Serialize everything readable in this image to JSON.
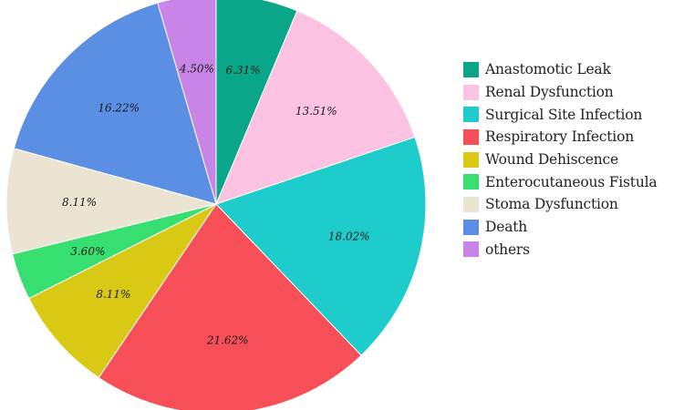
{
  "chart_data": {
    "type": "pie",
    "title": "",
    "start_angle_deg": 0,
    "direction": "clockwise",
    "legend_position": "right",
    "slices": [
      {
        "name": "Anastomotic Leak",
        "value": 6.31,
        "label": "6.31%",
        "color": "#0aa68a"
      },
      {
        "name": "Renal Dysfunction",
        "value": 13.51,
        "label": "13.51%",
        "color": "#fbc2e2"
      },
      {
        "name": "Surgical Site Infection",
        "value": 18.02,
        "label": "18.02%",
        "color": "#1fcccc"
      },
      {
        "name": "Respiratory Infection",
        "value": 21.62,
        "label": "21.62%",
        "color": "#f64f57"
      },
      {
        "name": "Wound Dehiscence",
        "value": 8.11,
        "label": "8.11%",
        "color": "#d9c814"
      },
      {
        "name": "Enterocutaneous Fistula",
        "value": 3.6,
        "label": "3.60%",
        "color": "#36df6f"
      },
      {
        "name": "Stoma Dysfunction",
        "value": 8.11,
        "label": "8.11%",
        "color": "#ece4d3"
      },
      {
        "name": "Death",
        "value": 16.22,
        "label": "16.22%",
        "color": "#5a8fe3"
      },
      {
        "name": "others",
        "value": 4.5,
        "label": "4.50%",
        "color": "#c884e6"
      }
    ]
  }
}
